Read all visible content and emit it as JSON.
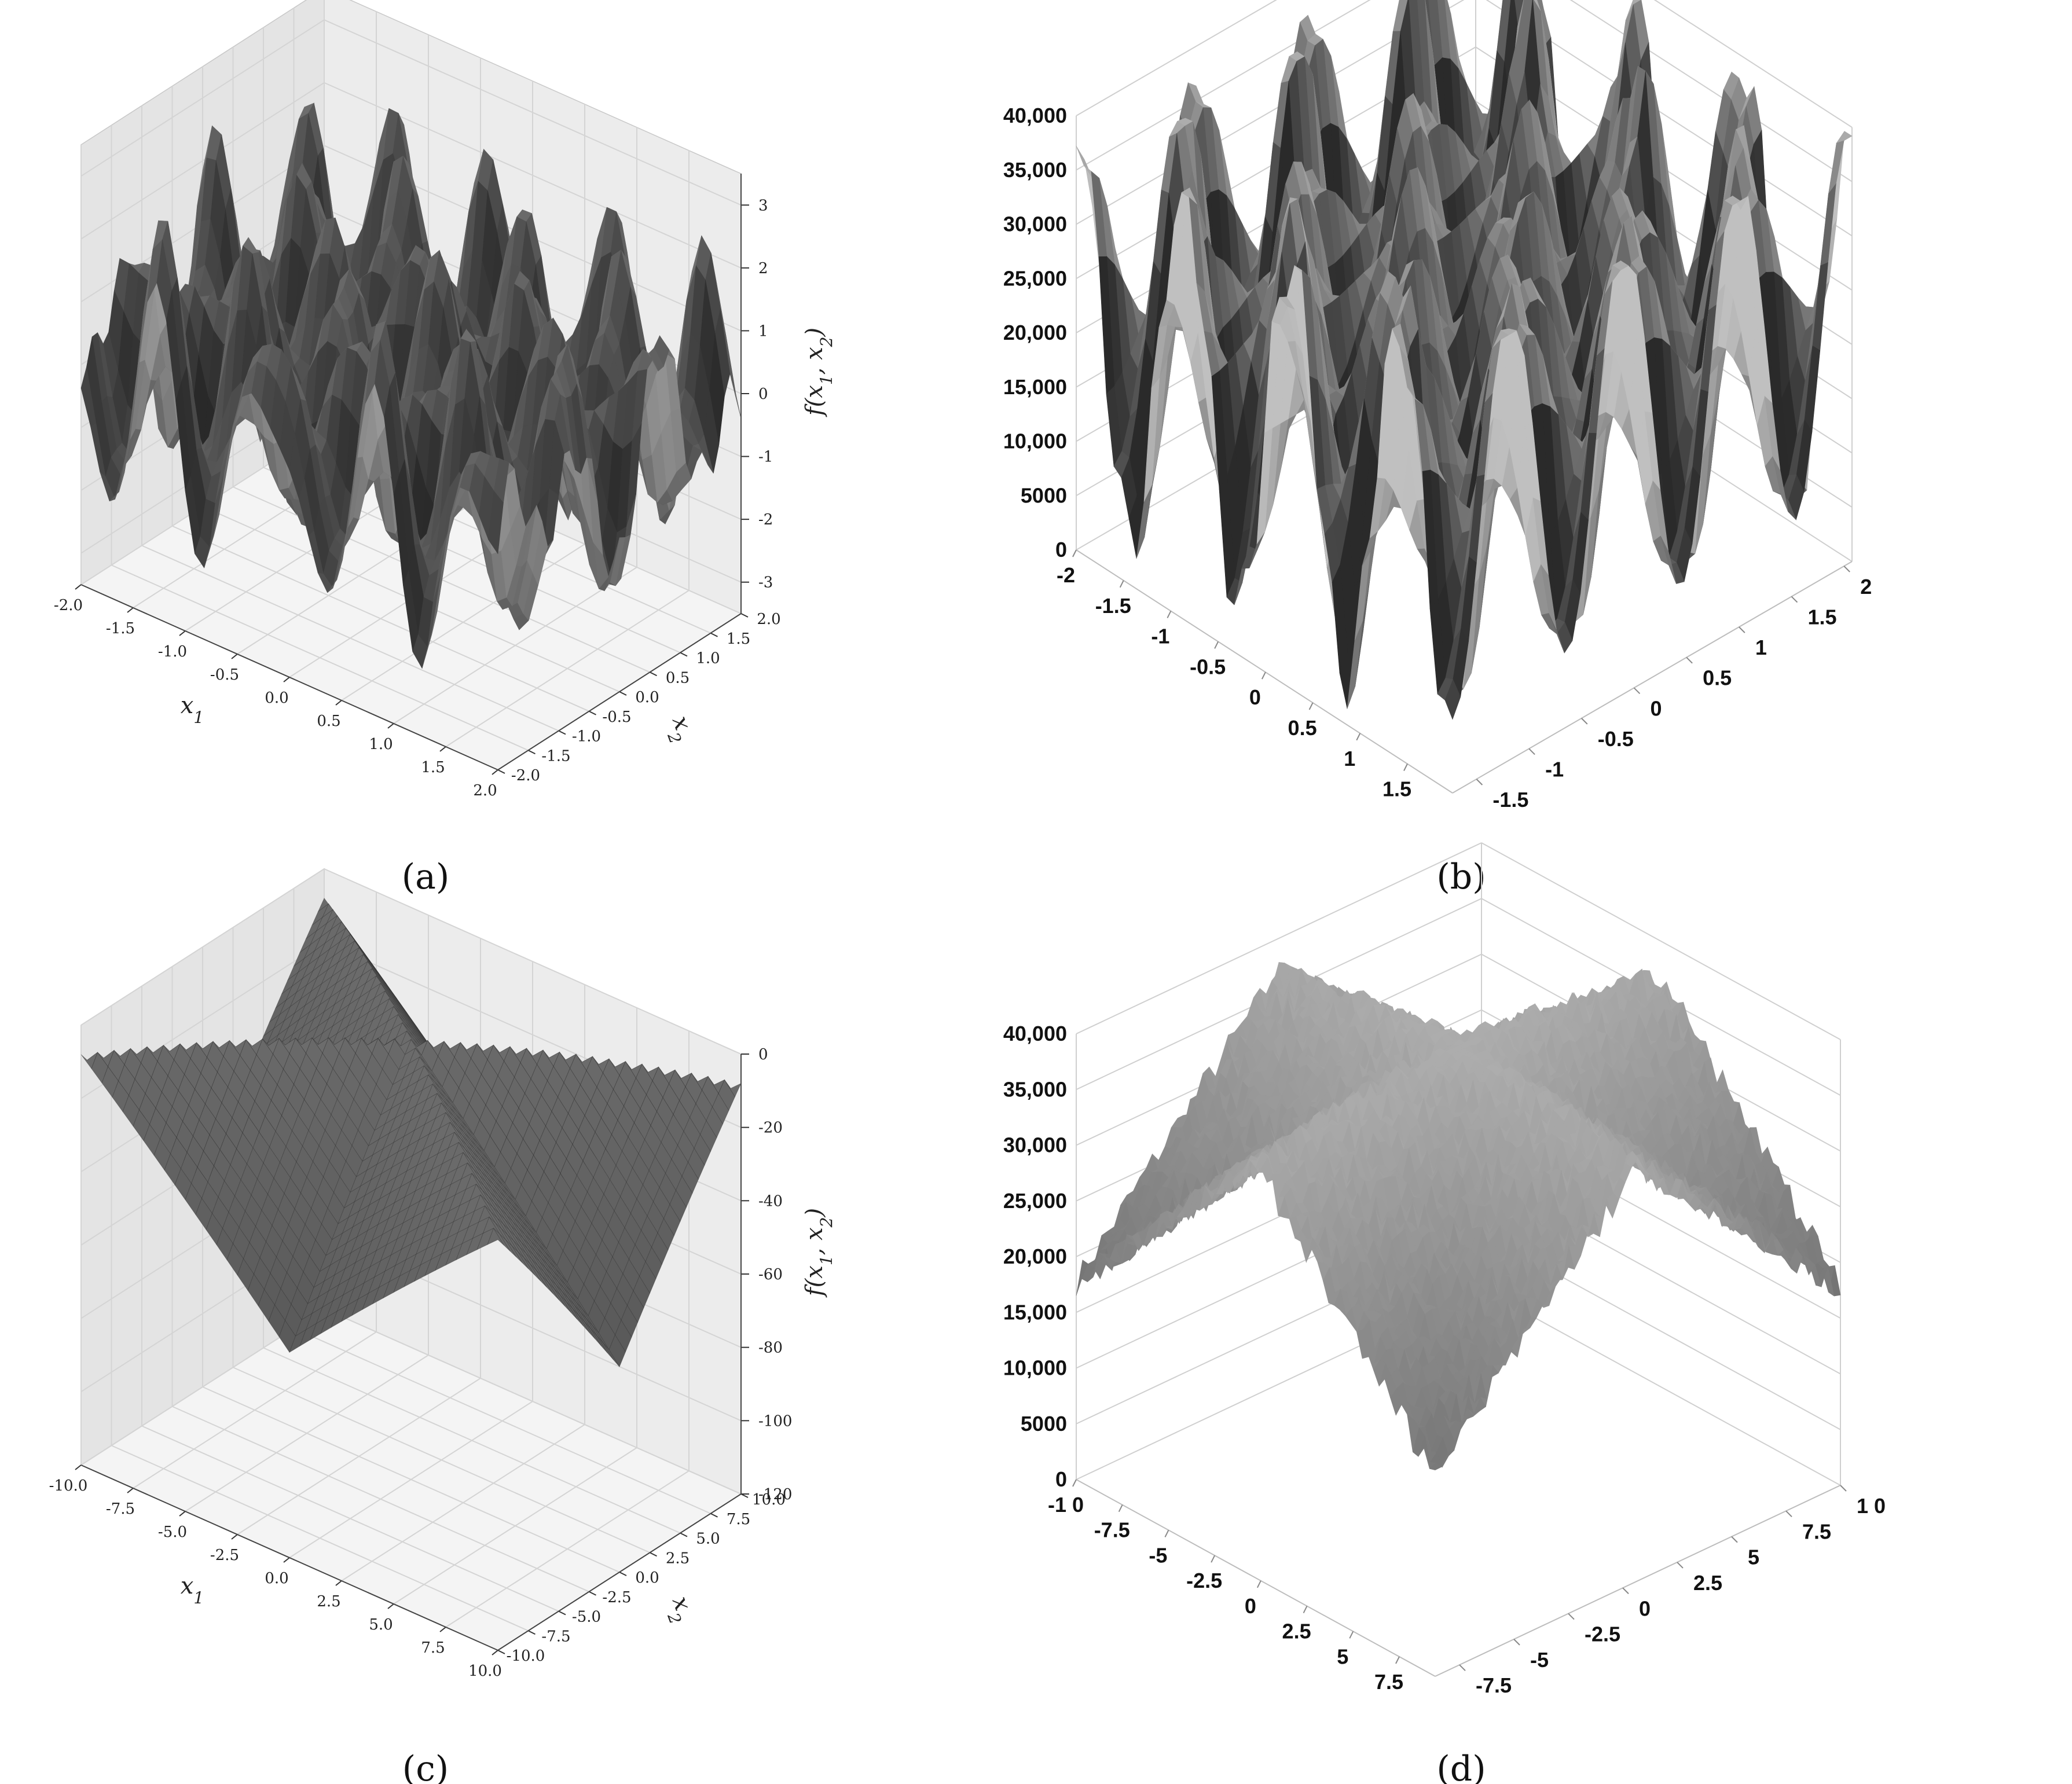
{
  "chart_data": [
    {
      "type": "surface",
      "panel_label": "(a)",
      "render_style": "matplotlib",
      "x_label": "x1",
      "y_label": "x2",
      "z_label": "f(x1, x2)",
      "x_ticks": [
        "-2.0",
        "-1.5",
        "-1.0",
        "-0.5",
        "0.0",
        "0.5",
        "1.0",
        "1.5",
        "2.0"
      ],
      "y_ticks": [
        "-2.0",
        "-1.5",
        "-1.0",
        "-0.5",
        "0.0",
        "0.5",
        "1.0",
        "1.5",
        "2.0"
      ],
      "z_ticks": [
        "-3",
        "-2",
        "-1",
        "0",
        "1",
        "2",
        "3"
      ],
      "xlim": [
        -2,
        2
      ],
      "ylim": [
        -2,
        2
      ],
      "zlim": [
        -3.5,
        3.5
      ],
      "grid": true,
      "surface": {
        "kind": "oscillatory",
        "amplitude": 3,
        "frequency": 6
      },
      "colors": {
        "surface": "#5a5a5a",
        "pane": "#f2f2f2",
        "grid": "#d4d4d4"
      }
    },
    {
      "type": "surface",
      "panel_label": "(b)",
      "render_style": "excel",
      "x_ticks": [
        "-2",
        "-1.5",
        "-1",
        "-0.5",
        "0",
        "0.5",
        "1",
        "1.5"
      ],
      "y_ticks": [
        "-1.5",
        "-1",
        "-0.5",
        "0",
        "0.5",
        "1",
        "1.5",
        "2"
      ],
      "z_ticks": [
        "0",
        "5000",
        "10,000",
        "15,000",
        "20,000",
        "25,000",
        "30,000",
        "35,000",
        "40,000"
      ],
      "xlim": [
        -2,
        2
      ],
      "ylim": [
        -2,
        2
      ],
      "zlim": [
        0,
        40000
      ],
      "grid": true,
      "surface": {
        "kind": "oscillatory",
        "amplitude": 15000,
        "frequency": 5
      },
      "colors": {
        "surface": "#6e6e6e",
        "grid": "#cfcfcf"
      }
    },
    {
      "type": "surface",
      "panel_label": "(c)",
      "render_style": "matplotlib",
      "x_label": "x1",
      "y_label": "x2",
      "z_label": "f(x1, x2)",
      "x_ticks": [
        "-10.0",
        "-7.5",
        "-5.0",
        "-2.5",
        "0.0",
        "2.5",
        "5.0",
        "7.5",
        "10.0"
      ],
      "y_ticks": [
        "-10.0",
        "-7.5",
        "-5.0",
        "-2.5",
        "0.0",
        "2.5",
        "5.0",
        "7.5",
        "10.0"
      ],
      "z_ticks": [
        "-120",
        "-100",
        "-80",
        "-60",
        "-40",
        "-20",
        "0"
      ],
      "xlim": [
        -10,
        10
      ],
      "ylim": [
        -10,
        10
      ],
      "zlim": [
        -120,
        0
      ],
      "grid": true,
      "surface": {
        "kind": "ridged",
        "max": 0,
        "min": -120
      },
      "colors": {
        "surface": "#5c5c5c",
        "pane": "#f2f2f2",
        "grid": "#d4d4d4"
      }
    },
    {
      "type": "surface",
      "panel_label": "(d)",
      "render_style": "excel",
      "x_ticks": [
        "-1 0",
        "-7.5",
        "-5",
        "-2.5",
        "0",
        "2.5",
        "5",
        "7.5"
      ],
      "y_ticks": [
        "-7.5",
        "-5",
        "-2.5",
        "0",
        "2.5",
        "5",
        "7.5",
        "1 0"
      ],
      "z_ticks": [
        "0",
        "5000",
        "10,000",
        "15,000",
        "20,000",
        "25,000",
        "30,000",
        "35,000",
        "40,000"
      ],
      "xlim": [
        -10,
        10
      ],
      "ylim": [
        -10,
        10
      ],
      "zlim": [
        0,
        40000
      ],
      "grid": true,
      "surface": {
        "kind": "noisy-ridged",
        "max": 40000,
        "min": 15000
      },
      "colors": {
        "surface": "#7a7a7a",
        "grid": "#cfcfcf"
      }
    }
  ]
}
